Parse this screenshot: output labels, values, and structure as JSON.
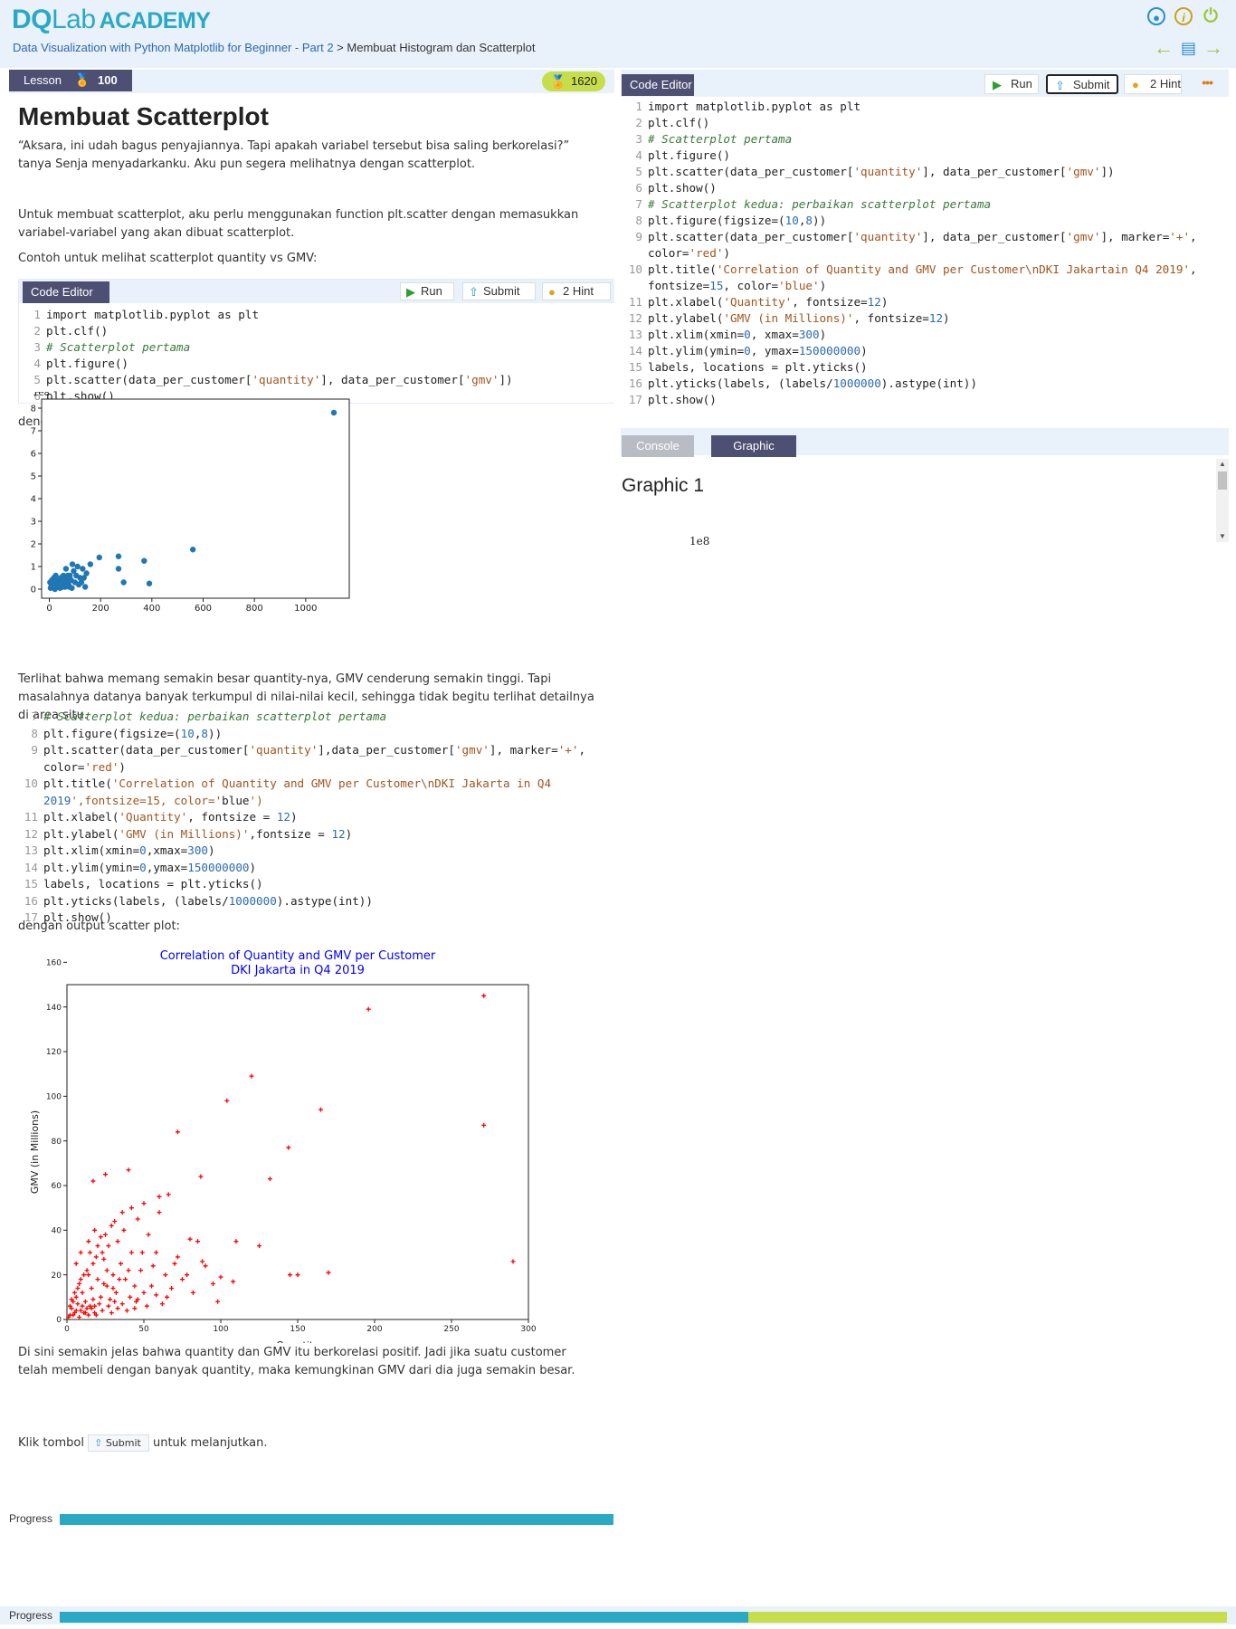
{
  "brand": {
    "part1": "DQ",
    "part2": "Lab",
    "part3": "ACADEMY"
  },
  "breadcrumb": {
    "course": "Data Visualization with Python Matplotlib for Beginner - Part 2",
    "separator": " > ",
    "current": "Membuat Histogram dan Scatterplot"
  },
  "top_icons": [
    "user-icon",
    "info-icon",
    "power-icon"
  ],
  "nav_icons": [
    "arrow-left-icon",
    "document-icon",
    "arrow-right-icon"
  ],
  "lesson": {
    "tab_label": "Lesson",
    "points": "100",
    "xp": "1620",
    "title": "Membuat Scatterplot",
    "p1": "“Aksara, ini udah bagus penyajiannya. Tapi apakah variabel tersebut bisa saling berkorelasi?” tanya Senja menyadarkanku. Aku pun segera melihatnya dengan scatterplot.",
    "p2": "Untuk membuat scatterplot, aku perlu menggunakan function plt.scatter dengan memasukkan variabel-variabel yang akan dibuat scatterplot.",
    "p3": "Contoh untuk melihat scatterplot quantity vs GMV:",
    "p4": "dengan output tampila scatter plot",
    "p5": "Terlihat bahwa memang semakin besar quantity-nya, GMV cenderung semakin tinggi. Tapi masalahnya datanya banyak terkumpul di nilai-nilai kecil, sehingga tidak begitu terlihat detailnya di area situ.",
    "p6": "dengan output scatter plot:",
    "p7": "Di sini semakin jelas bahwa quantity dan GMV itu berkorelasi positif. Jadi jika suatu customer telah membeli dengan banyak quantity, maka kemungkinan GMV dari dia juga semakin besar.",
    "p8_before": "Klik tombol",
    "p8_button": "Submit",
    "p8_after": "untuk melanjutkan."
  },
  "inline_editor": {
    "tab_label": "Code Editor",
    "run_label": "Run",
    "submit_label": "Submit",
    "hint_label": "2 Hint",
    "lines": [
      {
        "n": "1",
        "code": "import matplotlib.pyplot as plt"
      },
      {
        "n": "2",
        "code": "plt.clf()"
      },
      {
        "n": "3",
        "code": "# Scatterplot pertama"
      },
      {
        "n": "4",
        "code": "plt.figure()"
      },
      {
        "n": "5",
        "code": "plt.scatter(data_per_customer['quantity'], data_per_customer['gmv'])"
      },
      {
        "n": "6",
        "code": "plt.show()"
      }
    ]
  },
  "snippet2": {
    "lines": [
      {
        "n": "7",
        "code": "# Scatterplot kedua: perbaikan scatterplot pertama"
      },
      {
        "n": "8",
        "code": "plt.figure(figsize=(10,8))"
      },
      {
        "n": "9",
        "code": "plt.scatter(data_per_customer['quantity'],data_per_customer['gmv'], marker='+',"
      },
      {
        "n": "",
        "code": "color='red')"
      },
      {
        "n": "10",
        "code": "plt.title('Correlation of Quantity and GMV per Customer\\nDKI Jakarta in Q4"
      },
      {
        "n": "",
        "code": "2019',fontsize=15, color='blue')"
      },
      {
        "n": "11",
        "code": "plt.xlabel('Quantity', fontsize = 12)"
      },
      {
        "n": "12",
        "code": "plt.ylabel('GMV (in Millions)',fontsize = 12)"
      },
      {
        "n": "13",
        "code": "plt.xlim(xmin=0,xmax=300)"
      },
      {
        "n": "14",
        "code": "plt.ylim(ymin=0,ymax=150000000)"
      },
      {
        "n": "15",
        "code": "labels, locations = plt.yticks()"
      },
      {
        "n": "16",
        "code": "plt.yticks(labels, (labels/1000000).astype(int))"
      },
      {
        "n": "17",
        "code": "plt.show()"
      }
    ]
  },
  "right_editor": {
    "tab_label": "Code Editor",
    "run_label": "Run",
    "submit_label": "Submit",
    "hint_label": "2 Hint",
    "more_label": "•••",
    "lines": [
      {
        "n": "1",
        "code": "import matplotlib.pyplot as plt"
      },
      {
        "n": "2",
        "code": "plt.clf()"
      },
      {
        "n": "3",
        "code": "# Scatterplot pertama"
      },
      {
        "n": "4",
        "code": "plt.figure()"
      },
      {
        "n": "5",
        "code": "plt.scatter(data_per_customer['quantity'], data_per_customer['gmv'])"
      },
      {
        "n": "6",
        "code": "plt.show()"
      },
      {
        "n": "7",
        "code": "# Scatterplot kedua: perbaikan scatterplot pertama"
      },
      {
        "n": "8",
        "code": "plt.figure(figsize=(10,8))"
      },
      {
        "n": "9",
        "code": "plt.scatter(data_per_customer['quantity'], data_per_customer['gmv'], marker='+',"
      },
      {
        "n": "",
        "code": "color='red')"
      },
      {
        "n": "10",
        "code": "plt.title('Correlation of Quantity and GMV per Customer\\nDKI Jakartain Q4 2019',"
      },
      {
        "n": "",
        "code": "fontsize=15, color='blue')"
      },
      {
        "n": "11",
        "code": "plt.xlabel('Quantity', fontsize=12)"
      },
      {
        "n": "12",
        "code": "plt.ylabel('GMV (in Millions)', fontsize=12)"
      },
      {
        "n": "13",
        "code": "plt.xlim(xmin=0, xmax=300)"
      },
      {
        "n": "14",
        "code": "plt.ylim(ymin=0, ymax=150000000)"
      },
      {
        "n": "15",
        "code": "labels, locations = plt.yticks()"
      },
      {
        "n": "16",
        "code": "plt.yticks(labels, (labels/1000000).astype(int))"
      },
      {
        "n": "17",
        "code": "plt.show()"
      }
    ]
  },
  "output_tabs": {
    "console": "Console",
    "graphic": "Graphic",
    "graphic_title": "Graphic 1",
    "graphic_sci": "1e8"
  },
  "progress": {
    "label": "Progress",
    "lesson_fraction": 1.0,
    "global_fraction": 0.59
  },
  "colors": {
    "accent": "#2aa9c4",
    "tab_bg": "#4d5072",
    "lime": "#c8dd4a",
    "link": "#2a6ab2"
  },
  "chart_data": [
    {
      "type": "scatter",
      "title": "",
      "xlabel": "",
      "ylabel": "",
      "offset_label": "1e8",
      "xlim": [
        -30,
        1170
      ],
      "ylim": [
        -0.4,
        8.4
      ],
      "xticks": [
        0,
        200,
        400,
        600,
        800,
        1000
      ],
      "yticks": [
        0,
        1,
        2,
        3,
        4,
        5,
        6,
        7,
        8
      ],
      "color": "#1f77b4",
      "points": [
        [
          1110,
          7.8
        ],
        [
          560,
          1.75
        ],
        [
          370,
          1.25
        ],
        [
          390,
          0.25
        ],
        [
          270,
          1.45
        ],
        [
          270,
          0.9
        ],
        [
          290,
          0.3
        ],
        [
          195,
          1.4
        ],
        [
          160,
          1.1
        ],
        [
          145,
          0.7
        ],
        [
          130,
          0.9
        ],
        [
          120,
          0.5
        ],
        [
          110,
          1.0
        ],
        [
          100,
          0.3
        ],
        [
          95,
          0.8
        ],
        [
          90,
          1.1
        ],
        [
          80,
          0.6
        ],
        [
          75,
          0.2
        ],
        [
          70,
          0.5
        ],
        [
          65,
          0.9
        ],
        [
          60,
          0.3
        ],
        [
          55,
          0.6
        ],
        [
          50,
          0.2
        ],
        [
          45,
          0.5
        ],
        [
          40,
          0.1
        ],
        [
          35,
          0.4
        ],
        [
          30,
          0.2
        ],
        [
          25,
          0.6
        ],
        [
          20,
          0.3
        ],
        [
          15,
          0.1
        ],
        [
          10,
          0.4
        ],
        [
          8,
          0.2
        ],
        [
          5,
          0.05
        ],
        [
          3,
          0.3
        ],
        [
          12,
          0.1
        ],
        [
          18,
          0.5
        ],
        [
          22,
          0.0
        ],
        [
          28,
          0.45
        ],
        [
          33,
          0.1
        ],
        [
          38,
          0.3
        ],
        [
          42,
          0.05
        ],
        [
          48,
          0.35
        ],
        [
          52,
          0.1
        ],
        [
          58,
          0.4
        ],
        [
          62,
          0.1
        ],
        [
          68,
          0.3
        ],
        [
          72,
          0.6
        ],
        [
          78,
          0.1
        ],
        [
          85,
          0.4
        ],
        [
          88,
          0.05
        ],
        [
          105,
          0.6
        ],
        [
          115,
          0.2
        ],
        [
          125,
          0.3
        ],
        [
          135,
          0.5
        ],
        [
          140,
          0.1
        ]
      ]
    },
    {
      "type": "scatter",
      "title": "Correlation of Quantity and GMV per Customer\nDKI Jakarta in Q4 2019",
      "xlabel": "Quantity",
      "ylabel": "GMV (in Millions)",
      "xlim": [
        0,
        300
      ],
      "ylim": [
        0,
        150
      ],
      "xticks": [
        0,
        50,
        100,
        150,
        200,
        250,
        300
      ],
      "yticks": [
        0,
        20,
        40,
        60,
        80,
        100,
        120,
        140,
        160
      ],
      "marker": "+",
      "color": "#ff0000",
      "title_color": "#0000ff",
      "points": [
        [
          271,
          145
        ],
        [
          196,
          139
        ],
        [
          120,
          109
        ],
        [
          104,
          98
        ],
        [
          165,
          94
        ],
        [
          72,
          84
        ],
        [
          271,
          87
        ],
        [
          144,
          77
        ],
        [
          40,
          67
        ],
        [
          25,
          65
        ],
        [
          60,
          55
        ],
        [
          66,
          56
        ],
        [
          87,
          64
        ],
        [
          17,
          62
        ],
        [
          132,
          63
        ],
        [
          110,
          35
        ],
        [
          125,
          33
        ],
        [
          80,
          36
        ],
        [
          85,
          35
        ],
        [
          90,
          24
        ],
        [
          100,
          19
        ],
        [
          170,
          21
        ],
        [
          145,
          20
        ],
        [
          150,
          20
        ],
        [
          290,
          26
        ],
        [
          98,
          8
        ],
        [
          70,
          25
        ],
        [
          75,
          18
        ],
        [
          65,
          10
        ],
        [
          50,
          12
        ],
        [
          55,
          15
        ],
        [
          45,
          8
        ],
        [
          48,
          22
        ],
        [
          42,
          30
        ],
        [
          38,
          18
        ],
        [
          35,
          25
        ],
        [
          32,
          12
        ],
        [
          30,
          20
        ],
        [
          28,
          9
        ],
        [
          26,
          15
        ],
        [
          24,
          27
        ],
        [
          22,
          10
        ],
        [
          20,
          18
        ],
        [
          18,
          6
        ],
        [
          16,
          14
        ],
        [
          14,
          20
        ],
        [
          12,
          8
        ],
        [
          10,
          12
        ],
        [
          9,
          4
        ],
        [
          8,
          16
        ],
        [
          7,
          7
        ],
        [
          6,
          10
        ],
        [
          5,
          3
        ],
        [
          4,
          8
        ],
        [
          3,
          5
        ],
        [
          2,
          2
        ],
        [
          1,
          1
        ],
        [
          11,
          3
        ],
        [
          13,
          5
        ],
        [
          15,
          6
        ],
        [
          17,
          9
        ],
        [
          19,
          2
        ],
        [
          21,
          7
        ],
        [
          23,
          4
        ],
        [
          27,
          6
        ],
        [
          29,
          3
        ],
        [
          31,
          8
        ],
        [
          33,
          5
        ],
        [
          36,
          7
        ],
        [
          39,
          4
        ],
        [
          41,
          10
        ],
        [
          44,
          5
        ],
        [
          46,
          9
        ],
        [
          52,
          6
        ],
        [
          58,
          11
        ],
        [
          62,
          7
        ],
        [
          68,
          14
        ],
        [
          78,
          20
        ],
        [
          82,
          12
        ],
        [
          95,
          16
        ],
        [
          58,
          30
        ],
        [
          53,
          38
        ],
        [
          46,
          45
        ],
        [
          37,
          40
        ],
        [
          33,
          35
        ],
        [
          29,
          42
        ],
        [
          27,
          33
        ],
        [
          25,
          38
        ],
        [
          23,
          30
        ],
        [
          20,
          33
        ],
        [
          19,
          28
        ],
        [
          17,
          25
        ],
        [
          15,
          30
        ],
        [
          13,
          22
        ],
        [
          11,
          20
        ],
        [
          9,
          18
        ],
        [
          7,
          14
        ],
        [
          5,
          12
        ],
        [
          3,
          9
        ],
        [
          2,
          6
        ],
        [
          4,
          2
        ],
        [
          6,
          4
        ],
        [
          8,
          1
        ],
        [
          10,
          6
        ],
        [
          12,
          3
        ],
        [
          14,
          2
        ],
        [
          16,
          5
        ],
        [
          18,
          3
        ],
        [
          24,
          16
        ],
        [
          26,
          22
        ],
        [
          30,
          14
        ],
        [
          34,
          18
        ],
        [
          40,
          22
        ],
        [
          44,
          15
        ],
        [
          49,
          30
        ],
        [
          56,
          24
        ],
        [
          64,
          20
        ],
        [
          72,
          28
        ],
        [
          88,
          26
        ],
        [
          108,
          17
        ],
        [
          60,
          48
        ],
        [
          50,
          52
        ],
        [
          42,
          50
        ],
        [
          36,
          48
        ],
        [
          31,
          44
        ],
        [
          22,
          37
        ],
        [
          18,
          40
        ],
        [
          14,
          35
        ],
        [
          9,
          30
        ],
        [
          6,
          25
        ]
      ]
    }
  ]
}
